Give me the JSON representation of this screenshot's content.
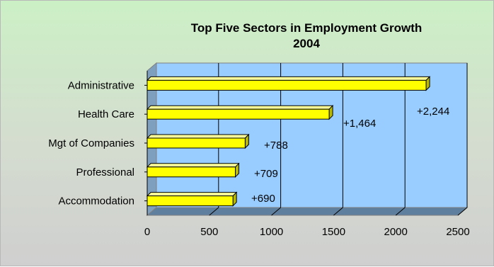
{
  "chart_data": {
    "type": "bar",
    "orientation": "horizontal",
    "three_d": true,
    "title": "Top Five Sectors in Employment Growth",
    "subtitle": "2004",
    "categories": [
      "Administrative",
      "Health Care",
      "Mgt of Companies",
      "Professional",
      "Accommodation"
    ],
    "values": [
      2244,
      1464,
      788,
      709,
      690
    ],
    "data_labels": [
      "+2,244",
      "+1,464",
      "+788",
      "+709",
      "+690"
    ],
    "xlim": [
      0,
      2500
    ],
    "x_ticks": [
      "0",
      "500",
      "1000",
      "1500",
      "2000",
      "2500"
    ],
    "grid": "vertical",
    "legend": "none",
    "colors": {
      "bar_front": "#ffff00",
      "bar_top": "#ffff99",
      "bar_side": "#b8b800",
      "plot_back": "#99ccff",
      "plot_floor": "#5f7f9f",
      "background": "#d4dccf"
    }
  }
}
